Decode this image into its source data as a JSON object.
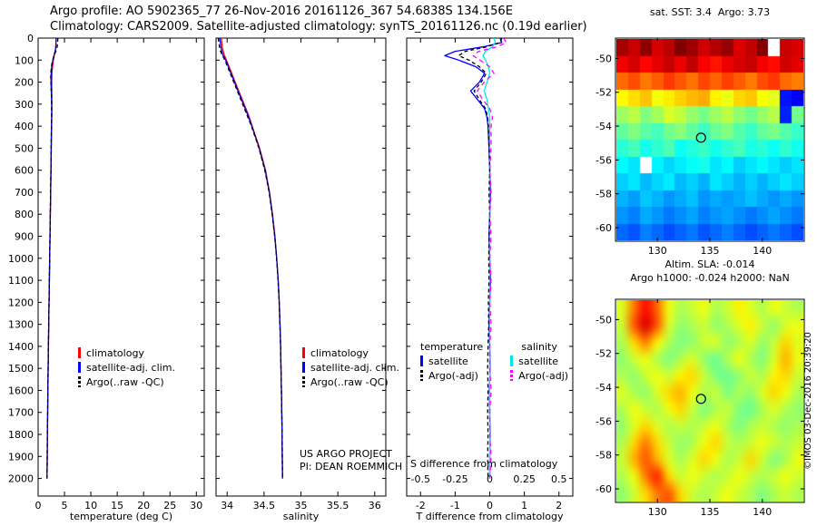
{
  "page": {
    "title_line1": "Argo profile: AO 5902365_77 26-Nov-2016 20161126_367 54.6838S 134.156E",
    "title_line2": "Climatology: CARS2009. Satellite-adjusted climatology: synTS_20161126.nc (0.19d earlier)",
    "credit": "©IMOS 03-Dec-2016 20:39:20"
  },
  "chart_data": [
    {
      "id": "temperature-profile",
      "type": "line",
      "xlabel": "temperature (deg C)",
      "ylabel": "depth",
      "x_range": [
        0,
        31.5
      ],
      "x_ticks": [
        0,
        5,
        10,
        15,
        20,
        25,
        30
      ],
      "depth_range": [
        0,
        2080
      ],
      "depth_ticks": [
        0,
        100,
        200,
        300,
        400,
        500,
        600,
        700,
        800,
        900,
        1000,
        1100,
        1200,
        1300,
        1400,
        1500,
        1600,
        1700,
        1800,
        1900,
        2000
      ],
      "depths": [
        0,
        25,
        50,
        75,
        100,
        125,
        150,
        175,
        200,
        250,
        300,
        350,
        400,
        450,
        500,
        600,
        700,
        800,
        900,
        1000,
        1100,
        1200,
        1300,
        1400,
        1500,
        1600,
        1700,
        1800,
        1900,
        2000
      ],
      "series": [
        {
          "name": "climatology",
          "color": "#ff0000",
          "dash": null,
          "values": [
            3.4,
            3.38,
            3.3,
            3.1,
            2.9,
            2.75,
            2.65,
            2.6,
            2.58,
            2.6,
            2.62,
            2.6,
            2.57,
            2.53,
            2.5,
            2.44,
            2.38,
            2.32,
            2.26,
            2.2,
            2.14,
            2.08,
            2.02,
            1.96,
            1.91,
            1.86,
            1.81,
            1.77,
            1.73,
            1.69
          ]
        },
        {
          "name": "satellite-adj. clim.",
          "color": "#0000ff",
          "dash": null,
          "values": [
            3.4,
            3.39,
            3.32,
            3.05,
            2.8,
            2.6,
            2.5,
            2.45,
            2.45,
            2.52,
            2.56,
            2.56,
            2.53,
            2.5,
            2.48,
            2.43,
            2.37,
            2.31,
            2.25,
            2.19,
            2.13,
            2.07,
            2.01,
            1.95,
            1.9,
            1.85,
            1.8,
            1.76,
            1.72,
            1.68
          ]
        },
        {
          "name": "Argo(..raw -QC)",
          "color": "#000000",
          "dash": [
            4,
            3
          ],
          "values": [
            3.73,
            3.7,
            3.55,
            3.1,
            2.75,
            2.55,
            2.45,
            2.4,
            2.42,
            2.5,
            2.55,
            2.55,
            2.52,
            2.5,
            2.47,
            2.42,
            2.36,
            2.3,
            2.24,
            2.18,
            2.12,
            2.06,
            2.0,
            1.95,
            1.9,
            1.85,
            1.8,
            1.76,
            1.72,
            1.68
          ]
        }
      ]
    },
    {
      "id": "salinity-profile",
      "type": "line",
      "xlabel": "salinity",
      "ylabel": "depth",
      "x_range": [
        33.85,
        36.15
      ],
      "x_ticks": [
        34,
        34.5,
        35,
        35.5,
        36
      ],
      "depth_range": [
        0,
        2080
      ],
      "depth_ticks": [
        0,
        100,
        200,
        300,
        400,
        500,
        600,
        700,
        800,
        900,
        1000,
        1100,
        1200,
        1300,
        1400,
        1500,
        1600,
        1700,
        1800,
        1900,
        2000
      ],
      "depths": [
        0,
        25,
        50,
        75,
        100,
        125,
        150,
        175,
        200,
        250,
        300,
        350,
        400,
        450,
        500,
        600,
        700,
        800,
        900,
        1000,
        1100,
        1200,
        1300,
        1400,
        1500,
        1600,
        1700,
        1800,
        1900,
        2000
      ],
      "annotation": [
        "US ARGO PROJECT",
        "PI: DEAN ROEMMICH"
      ],
      "series": [
        {
          "name": "climatology",
          "color": "#ff0000",
          "dash": null,
          "values": [
            33.92,
            33.93,
            33.94,
            33.96,
            33.99,
            34.02,
            34.05,
            34.08,
            34.11,
            34.17,
            34.23,
            34.29,
            34.34,
            34.39,
            34.44,
            34.52,
            34.575,
            34.615,
            34.648,
            34.672,
            34.692,
            34.707,
            34.717,
            34.726,
            34.731,
            34.736,
            34.741,
            34.745,
            34.748,
            34.751
          ]
        },
        {
          "name": "satellite-adj. clim.",
          "color": "#0000ff",
          "dash": null,
          "values": [
            33.9,
            33.91,
            33.92,
            33.94,
            33.98,
            34.01,
            34.04,
            34.07,
            34.1,
            34.16,
            34.22,
            34.28,
            34.335,
            34.385,
            34.435,
            34.515,
            34.572,
            34.612,
            34.646,
            34.671,
            34.691,
            34.706,
            34.716,
            34.725,
            34.73,
            34.735,
            34.74,
            34.744,
            34.747,
            34.75
          ]
        },
        {
          "name": "Argo(..raw -QC)",
          "color": "#000000",
          "dash": [
            4,
            3
          ],
          "values": [
            33.88,
            33.89,
            33.9,
            33.93,
            33.97,
            34.0,
            34.03,
            34.06,
            34.09,
            34.15,
            34.21,
            34.27,
            34.33,
            34.38,
            34.43,
            34.51,
            34.57,
            34.61,
            34.645,
            34.67,
            34.69,
            34.705,
            34.715,
            34.725,
            34.73,
            34.735,
            34.74,
            34.745,
            34.748,
            34.75
          ]
        }
      ]
    },
    {
      "id": "difference-profile",
      "type": "line",
      "xlabel": "T difference from climatology",
      "x2_label": "S difference from climatology",
      "x_range": [
        -2.4,
        2.4
      ],
      "x_ticks": [
        -2,
        -1,
        0,
        1,
        2
      ],
      "x2_range": [
        -0.6,
        0.6
      ],
      "x2_ticks": [
        -0.5,
        -0.25,
        0,
        0.25,
        0.5
      ],
      "depth_range": [
        0,
        2080
      ],
      "depth_ticks": [
        0,
        100,
        200,
        300,
        400,
        500,
        600,
        700,
        800,
        900,
        1000,
        1100,
        1200,
        1300,
        1400,
        1500,
        1600,
        1700,
        1800,
        1900,
        2000
      ],
      "depths": [
        0,
        20,
        40,
        60,
        80,
        100,
        130,
        160,
        200,
        240,
        280,
        320,
        360,
        400,
        500,
        600,
        700,
        800,
        900,
        1000,
        1100,
        1200,
        1300,
        1400,
        1500,
        1600,
        1700,
        1800,
        1900,
        2000
      ],
      "series": [
        {
          "name": "temperature satellite",
          "color": "#0000ff",
          "dash": null,
          "axis": "x",
          "values": [
            0.3,
            0.35,
            -0.2,
            -1.0,
            -1.3,
            -0.9,
            -0.4,
            -0.15,
            -0.3,
            -0.55,
            -0.35,
            -0.15,
            -0.08,
            -0.05,
            -0.02,
            0.0,
            0.02,
            0.0,
            -0.02,
            0.0,
            0.02,
            0.0,
            -0.02,
            0.0,
            0.01,
            -0.01,
            0.0,
            0.01,
            0.0,
            0.0
          ]
        },
        {
          "name": "salinity satellite",
          "color": "#00e5e5",
          "dash": null,
          "axis": "x2",
          "values": [
            0.03,
            0.04,
            0.02,
            -0.03,
            -0.05,
            -0.03,
            -0.01,
            0.0,
            -0.02,
            -0.04,
            -0.02,
            -0.01,
            0.0,
            0.0,
            0.0,
            0.0,
            0.0,
            0.0,
            0.0,
            0.0,
            0.0,
            0.0,
            0.0,
            0.0,
            0.0,
            0.0,
            0.0,
            0.0,
            0.0,
            0.0
          ]
        },
        {
          "name": "temperature Argo(-adj)",
          "color": "#000000",
          "dash": [
            4,
            3
          ],
          "axis": "x",
          "values": [
            0.35,
            0.3,
            -0.1,
            -0.7,
            -0.9,
            -0.6,
            -0.3,
            -0.1,
            -0.25,
            -0.45,
            -0.3,
            -0.12,
            -0.06,
            -0.04,
            -0.02,
            0.0,
            -0.02,
            0.0,
            -0.02,
            -0.03,
            -0.02,
            -0.04,
            -0.03,
            -0.05,
            -0.06,
            -0.05,
            -0.06,
            -0.05,
            -0.06,
            -0.05
          ]
        },
        {
          "name": "salinity Argo(-adj)",
          "color": "#ff00ff",
          "dash": [
            5,
            4
          ],
          "axis": "x2",
          "values": [
            0.1,
            0.12,
            0.05,
            -0.08,
            -0.12,
            -0.07,
            0.0,
            0.03,
            -0.04,
            -0.09,
            -0.05,
            0.0,
            0.02,
            0.01,
            0.01,
            0.0,
            0.01,
            0.0,
            0.01,
            0.0,
            0.01,
            0.0,
            0.01,
            0.0,
            0.0,
            0.01,
            0.0,
            0.0,
            0.01,
            0.0
          ]
        }
      ],
      "legend_groups": [
        {
          "title": "temperature",
          "entries": [
            {
              "label": "satellite",
              "color": "#0000ff",
              "dash": null
            },
            {
              "label": "Argo(-adj)",
              "color": "#000000",
              "dash": [
                4,
                3
              ]
            }
          ]
        },
        {
          "title": "salinity",
          "entries": [
            {
              "label": "satellite",
              "color": "#00e5e5",
              "dash": null
            },
            {
              "label": "Argo(-adj)",
              "color": "#ff00ff",
              "dash": [
                4,
                3
              ]
            }
          ]
        }
      ]
    },
    {
      "id": "sst-map",
      "type": "heatmap",
      "title": "sat. SST: 3.4  Argo: 3.73",
      "lon_range": [
        126,
        144
      ],
      "lat_range": [
        -60.8,
        -48.8
      ],
      "lon_ticks": [
        130,
        135,
        140
      ],
      "lat_ticks": [
        -50,
        -52,
        -54,
        -56,
        -58,
        -60
      ],
      "marker": {
        "lon": 134.156,
        "lat": -54.6838
      },
      "value_range": [
        0,
        14
      ],
      "smooth": false,
      "grid": [
        [
          13.5,
          13.0,
          13.8,
          12.8,
          13.2,
          14.0,
          13.6,
          12.9,
          13.3,
          13.7,
          12.7,
          13.1,
          13.9,
          null,
          13.0,
          12.8
        ],
        [
          12.4,
          12.8,
          12.2,
          12.6,
          13.0,
          12.5,
          13.1,
          12.3,
          12.0,
          12.5,
          12.8,
          13.0,
          12.4,
          12.1,
          12.9,
          12.6
        ],
        [
          10.8,
          11.2,
          10.6,
          11.0,
          11.5,
          11.1,
          10.7,
          11.3,
          10.9,
          11.4,
          11.0,
          10.6,
          11.2,
          11.5,
          10.8,
          10.5
        ],
        [
          8.8,
          9.2,
          9.6,
          8.6,
          9.0,
          9.4,
          9.7,
          9.9,
          8.9,
          8.5,
          9.3,
          9.5,
          8.7,
          8.4,
          2.0,
          1.6
        ],
        [
          7.4,
          7.8,
          7.0,
          7.5,
          8.2,
          7.9,
          7.3,
          6.9,
          7.4,
          7.8,
          7.2,
          6.8,
          7.3,
          7.7,
          2.2,
          6.8
        ],
        [
          6.6,
          7.0,
          6.5,
          6.2,
          6.8,
          7.1,
          6.6,
          6.1,
          6.7,
          7.0,
          6.4,
          6.0,
          6.6,
          6.9,
          6.4,
          6.0
        ],
        [
          5.8,
          6.2,
          5.5,
          5.9,
          6.3,
          5.4,
          5.7,
          6.0,
          5.5,
          5.9,
          6.2,
          5.6,
          5.8,
          5.4,
          5.9,
          5.5
        ],
        [
          5.2,
          4.9,
          null,
          5.1,
          4.7,
          5.0,
          5.3,
          5.5,
          4.9,
          5.2,
          4.6,
          4.9,
          5.2,
          4.9,
          4.6,
          4.9
        ],
        [
          4.6,
          4.9,
          4.3,
          4.7,
          5.0,
          4.3,
          4.6,
          4.2,
          4.9,
          4.6,
          4.2,
          4.6,
          4.2,
          4.6,
          4.9,
          4.6
        ],
        [
          4.2,
          3.9,
          4.5,
          4.2,
          3.8,
          4.1,
          4.4,
          3.8,
          4.1,
          3.9,
          4.1,
          4.4,
          4.1,
          3.8,
          4.1,
          3.8
        ],
        [
          3.8,
          3.5,
          4.1,
          3.8,
          3.4,
          3.7,
          4.0,
          3.5,
          3.8,
          4.0,
          3.7,
          3.4,
          3.7,
          4.0,
          3.7,
          3.4
        ],
        [
          3.2,
          2.9,
          3.5,
          3.2,
          2.8,
          3.1,
          3.4,
          2.9,
          3.2,
          3.5,
          3.1,
          2.8,
          3.1,
          3.4,
          3.1,
          2.8
        ]
      ]
    },
    {
      "id": "sla-map",
      "type": "heatmap",
      "title_lines": [
        "Altim. SLA: -0.014",
        "Argo h1000: -0.024 h2000: NaN"
      ],
      "lon_range": [
        126,
        144
      ],
      "lat_range": [
        -60.8,
        -48.8
      ],
      "lon_ticks": [
        130,
        135,
        140
      ],
      "lat_ticks": [
        -50,
        -52,
        -54,
        -56,
        -58,
        -60
      ],
      "marker": {
        "lon": 134.156,
        "lat": -54.6838
      },
      "value_range": [
        -0.55,
        0.55
      ],
      "smooth": true,
      "grid": [
        [
          0.1,
          0.28,
          0.4,
          0.3,
          0.12,
          0.05,
          0.08,
          0.12,
          0.05,
          0.08,
          0.15,
          0.1,
          0.05,
          0.12,
          0.08,
          0.05
        ],
        [
          0.08,
          0.32,
          0.45,
          0.32,
          0.1,
          0.02,
          0.05,
          0.08,
          0.02,
          0.05,
          0.1,
          0.15,
          0.08,
          0.02,
          0.1,
          0.12
        ],
        [
          0.05,
          0.18,
          0.28,
          0.15,
          0.05,
          0.0,
          0.02,
          0.08,
          0.1,
          0.02,
          0.05,
          0.1,
          0.02,
          0.08,
          0.18,
          0.1
        ],
        [
          0.02,
          0.08,
          0.12,
          0.05,
          0.0,
          0.05,
          0.1,
          0.02,
          -0.02,
          0.05,
          0.12,
          0.05,
          0.0,
          0.1,
          0.22,
          0.12
        ],
        [
          0.05,
          0.02,
          0.08,
          0.12,
          0.08,
          0.15,
          0.18,
          0.08,
          0.0,
          -0.02,
          0.02,
          0.08,
          0.05,
          0.15,
          0.18,
          0.08
        ],
        [
          0.1,
          0.05,
          0.02,
          0.1,
          0.18,
          0.22,
          0.12,
          0.05,
          0.08,
          0.0,
          0.05,
          0.02,
          0.1,
          0.18,
          0.12,
          0.05
        ],
        [
          0.05,
          0.12,
          0.08,
          0.05,
          0.12,
          0.18,
          0.08,
          0.0,
          0.05,
          0.08,
          0.0,
          -0.02,
          0.05,
          0.1,
          0.05,
          0.02
        ],
        [
          0.02,
          0.1,
          0.18,
          0.1,
          0.05,
          0.08,
          0.05,
          0.08,
          0.12,
          0.05,
          0.0,
          0.05,
          0.08,
          0.05,
          0.02,
          0.05
        ],
        [
          0.05,
          0.18,
          0.28,
          0.18,
          0.08,
          0.02,
          0.05,
          0.12,
          0.18,
          0.08,
          0.05,
          0.08,
          0.12,
          0.08,
          0.05,
          0.08
        ],
        [
          0.08,
          0.22,
          0.32,
          0.22,
          0.1,
          0.05,
          0.1,
          0.18,
          0.12,
          0.05,
          0.08,
          0.18,
          0.08,
          0.0,
          0.05,
          0.12
        ],
        [
          0.05,
          0.12,
          0.28,
          0.38,
          0.18,
          0.08,
          0.12,
          0.08,
          0.05,
          0.08,
          0.12,
          0.08,
          0.05,
          0.08,
          0.12,
          0.08
        ],
        [
          0.02,
          0.08,
          0.18,
          0.28,
          0.32,
          0.18,
          0.08,
          0.05,
          0.08,
          0.12,
          0.08,
          0.05,
          0.0,
          0.05,
          0.08,
          0.05
        ]
      ]
    }
  ]
}
